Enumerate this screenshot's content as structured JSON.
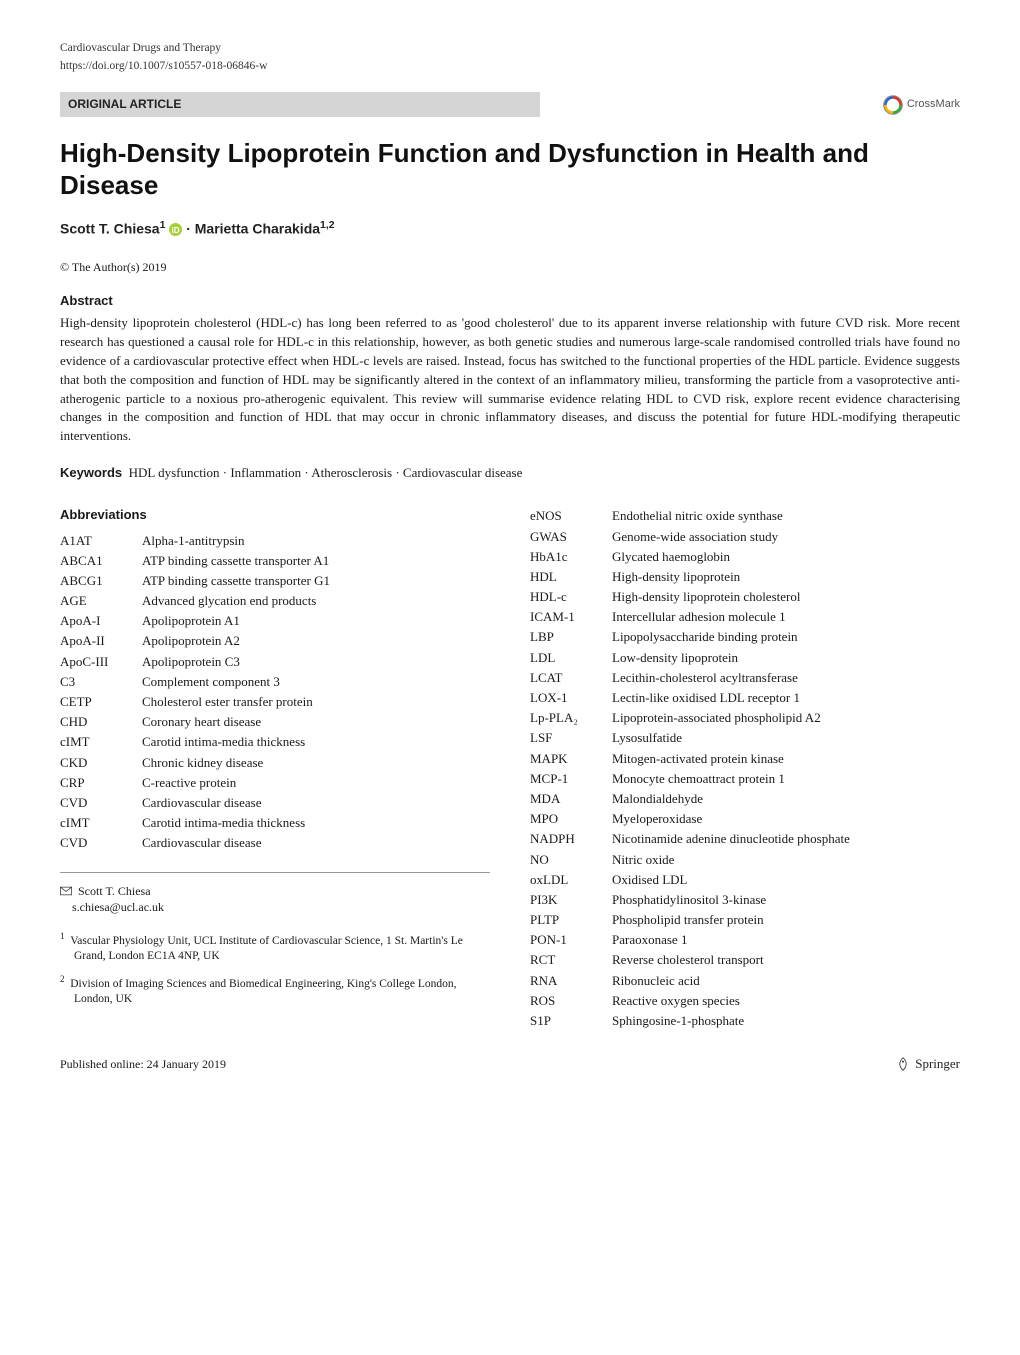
{
  "header": {
    "journal": "Cardiovascular Drugs and Therapy",
    "doi": "https://doi.org/10.1007/s10557-018-06846-w",
    "article_type": "ORIGINAL ARTICLE",
    "crossmark_label": "CrossMark"
  },
  "title": "High-Density Lipoprotein Function and Dysfunction in Health and Disease",
  "authors_html": "Scott T. Chiesa<sup>1</sup> {orcid} · Marietta Charakida<sup>1,2</sup>",
  "copyright": "© The Author(s) 2019",
  "abstract": {
    "heading": "Abstract",
    "text": "High-density lipoprotein cholesterol (HDL-c) has long been referred to as 'good cholesterol' due to its apparent inverse relationship with future CVD risk. More recent research has questioned a causal role for HDL-c in this relationship, however, as both genetic studies and numerous large-scale randomised controlled trials have found no evidence of a cardiovascular protective effect when HDL-c levels are raised. Instead, focus has switched to the functional properties of the HDL particle. Evidence suggests that both the composition and function of HDL may be significantly altered in the context of an inflammatory milieu, transforming the particle from a vasoprotective anti-atherogenic particle to a noxious pro-atherogenic equivalent. This review will summarise evidence relating HDL to CVD risk, explore recent evidence characterising changes in the composition and function of HDL that may occur in chronic inflammatory diseases, and discuss the potential for future HDL-modifying therapeutic interventions."
  },
  "keywords": {
    "label": "Keywords",
    "text": "HDL dysfunction · Inflammation · Atherosclerosis · Cardiovascular disease"
  },
  "abbrev_heading": "Abbreviations",
  "abbrev_left": [
    [
      "A1AT",
      "Alpha-1-antitrypsin"
    ],
    [
      "ABCA1",
      "ATP binding cassette transporter A1"
    ],
    [
      "ABCG1",
      "ATP binding cassette transporter G1"
    ],
    [
      "AGE",
      "Advanced glycation end products"
    ],
    [
      "ApoA-I",
      "Apolipoprotein A1"
    ],
    [
      "ApoA-II",
      "Apolipoprotein A2"
    ],
    [
      "ApoC-III",
      "Apolipoprotein C3"
    ],
    [
      "C3",
      "Complement component 3"
    ],
    [
      "CETP",
      "Cholesterol ester transfer protein"
    ],
    [
      "CHD",
      "Coronary heart disease"
    ],
    [
      "cIMT",
      "Carotid intima-media thickness"
    ],
    [
      "CKD",
      "Chronic kidney disease"
    ],
    [
      "CRP",
      "C-reactive protein"
    ],
    [
      "CVD",
      "Cardiovascular disease"
    ],
    [
      "cIMT",
      "Carotid intima-media thickness"
    ],
    [
      "CVD",
      "Cardiovascular disease"
    ]
  ],
  "abbrev_right": [
    [
      "eNOS",
      "Endothelial nitric oxide synthase"
    ],
    [
      "GWAS",
      "Genome-wide association study"
    ],
    [
      "HbA1c",
      "Glycated haemoglobin"
    ],
    [
      "HDL",
      "High-density lipoprotein"
    ],
    [
      "HDL-c",
      "High-density lipoprotein cholesterol"
    ],
    [
      "ICAM-1",
      "Intercellular adhesion molecule 1"
    ],
    [
      "LBP",
      "Lipopolysaccharide binding protein"
    ],
    [
      "LDL",
      "Low-density lipoprotein"
    ],
    [
      "LCAT",
      "Lecithin-cholesterol acyltransferase"
    ],
    [
      "LOX-1",
      "Lectin-like oxidised LDL receptor 1"
    ],
    [
      "Lp-PLA₂",
      "Lipoprotein-associated phospholipid A2"
    ],
    [
      "LSF",
      "Lysosulfatide"
    ],
    [
      "MAPK",
      "Mitogen-activated protein kinase"
    ],
    [
      "MCP-1",
      "Monocyte chemoattract protein 1"
    ],
    [
      "MDA",
      "Malondialdehyde"
    ],
    [
      "MPO",
      "Myeloperoxidase"
    ],
    [
      "NADPH",
      "Nicotinamide adenine dinucleotide phosphate"
    ],
    [
      "NO",
      "Nitric oxide"
    ],
    [
      "oxLDL",
      "Oxidised LDL"
    ],
    [
      "PI3K",
      "Phosphatidylinositol 3-kinase"
    ],
    [
      "PLTP",
      "Phospholipid transfer protein"
    ],
    [
      "PON-1",
      "Paraoxonase 1"
    ],
    [
      "RCT",
      "Reverse cholesterol transport"
    ],
    [
      "RNA",
      "Ribonucleic acid"
    ],
    [
      "ROS",
      "Reactive oxygen species"
    ],
    [
      "S1P",
      "Sphingosine-1-phosphate"
    ]
  ],
  "correspondence": {
    "name": "Scott T. Chiesa",
    "email": "s.chiesa@ucl.ac.uk"
  },
  "affiliations": [
    {
      "num": "1",
      "text": "Vascular Physiology Unit, UCL Institute of Cardiovascular Science, 1 St. Martin's Le Grand, London EC1A 4NP, UK"
    },
    {
      "num": "2",
      "text": "Division of Imaging Sciences and Biomedical Engineering, King's College London, London, UK"
    }
  ],
  "footer": {
    "pub_online": "Published online: 24 January 2019",
    "publisher": "Springer"
  },
  "colors": {
    "article_type_bg": "#d5d5d5",
    "text": "#1a1a1a",
    "divider": "#999999"
  },
  "typography": {
    "title_fontsize": 26,
    "body_fontsize": 13,
    "small_fontsize": 12
  }
}
